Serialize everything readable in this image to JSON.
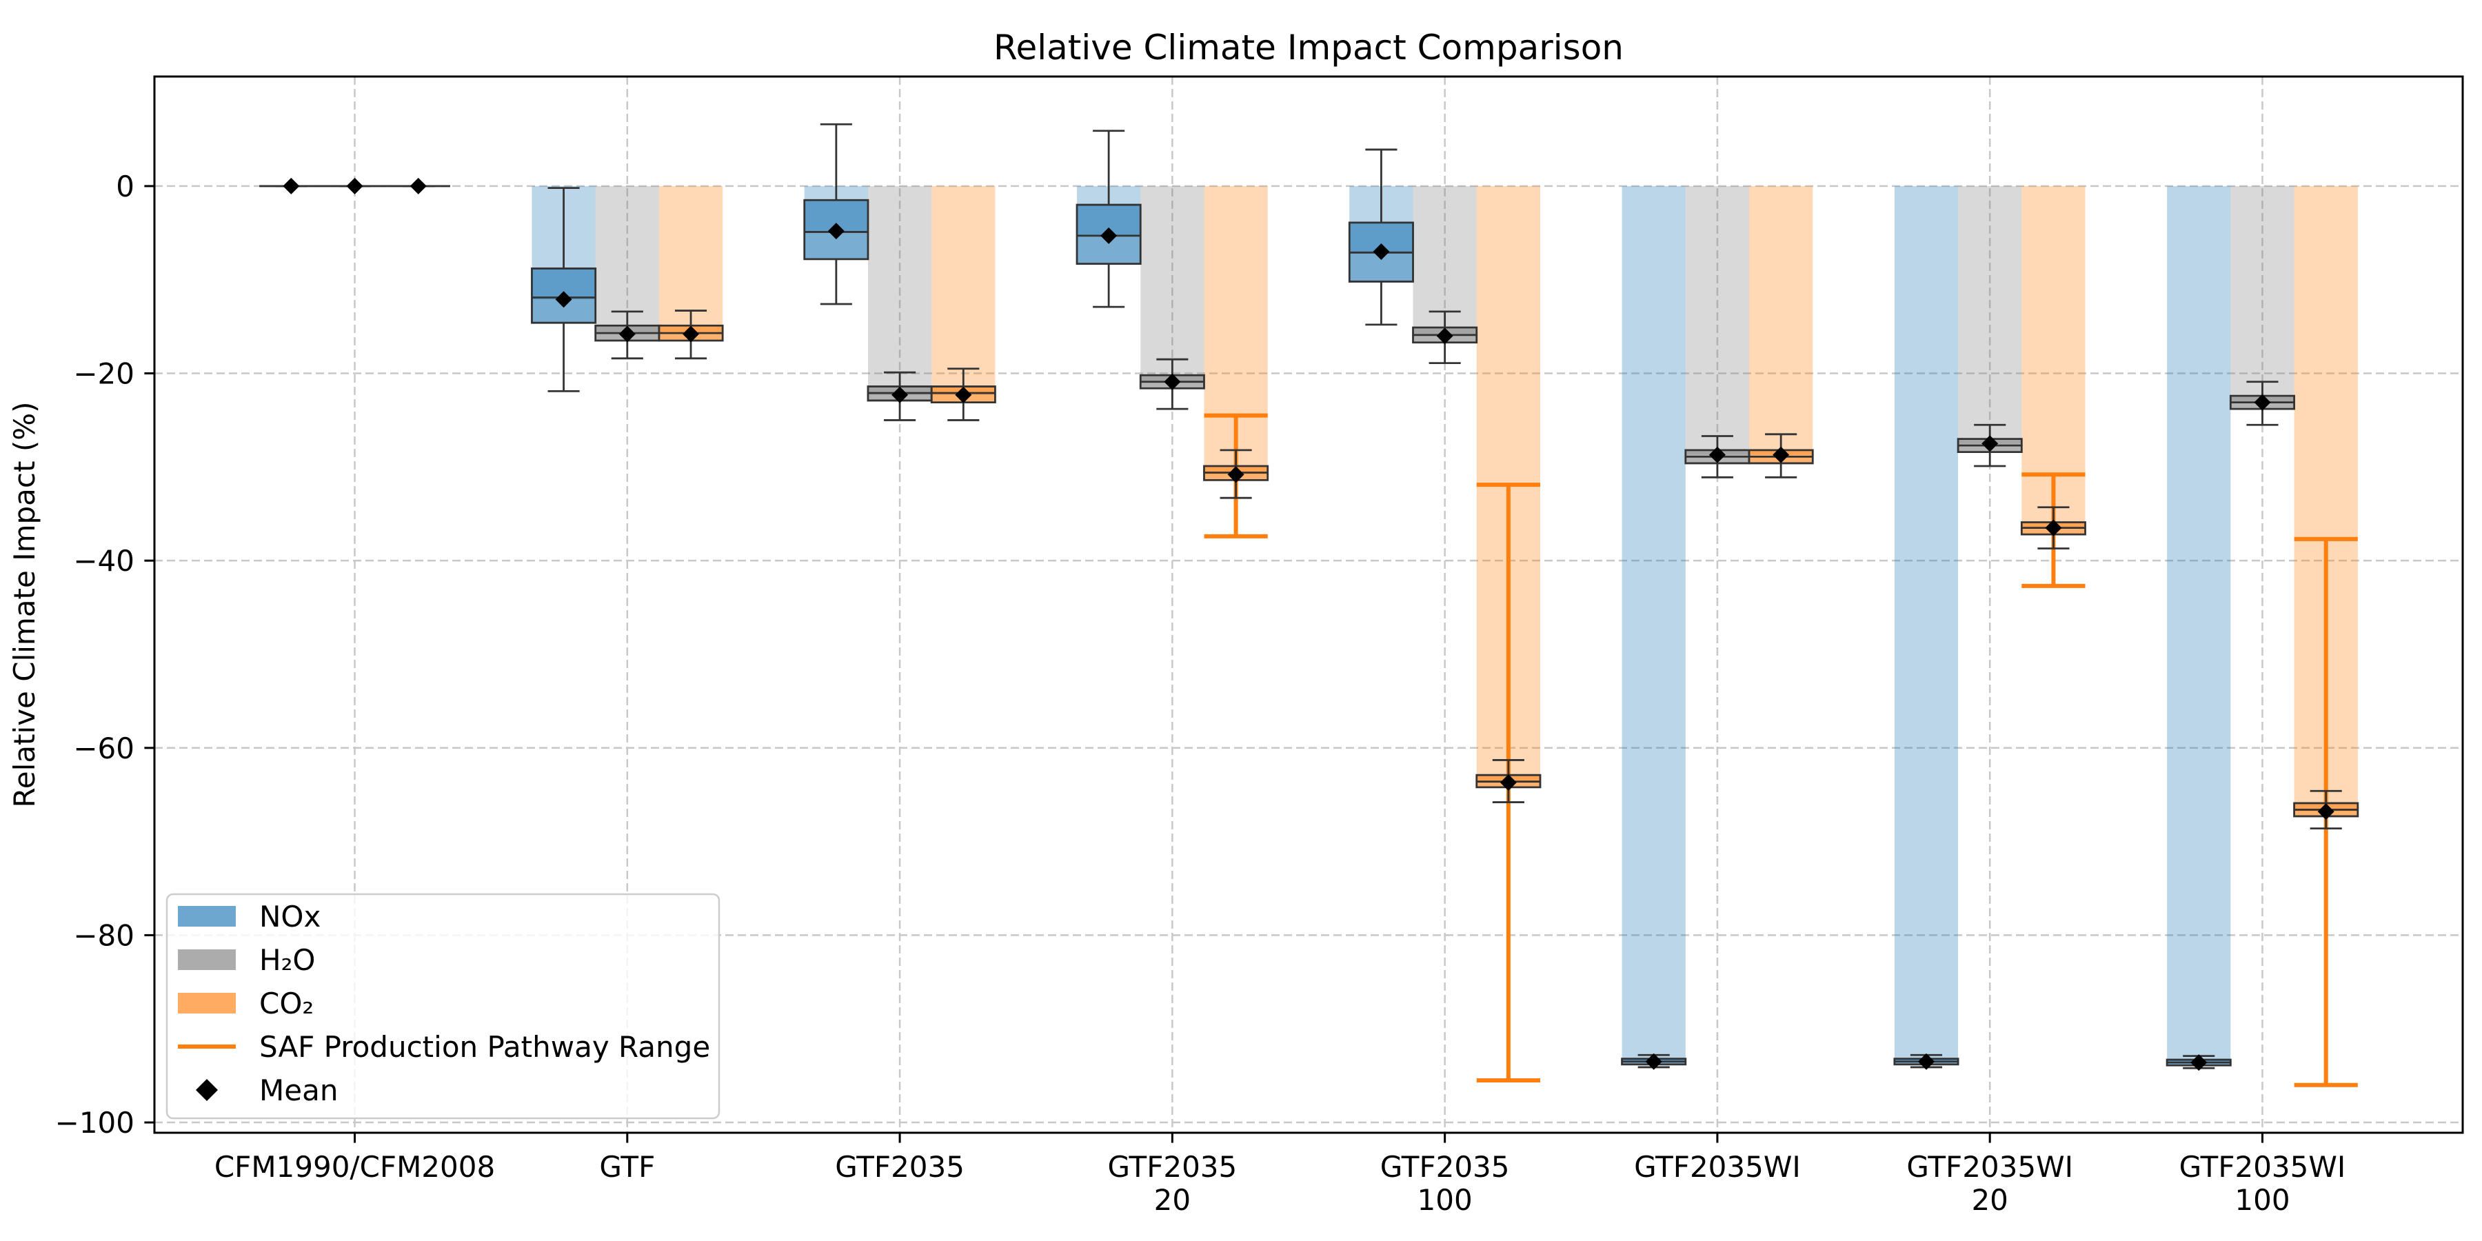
{
  "chart_data": {
    "type": "bar",
    "title": "Relative Climate Impact Comparison",
    "xlabel": "",
    "ylabel": "Relative Climate Impact (%)",
    "categories": [
      [
        "CFM1990/CFM2008"
      ],
      [
        "GTF"
      ],
      [
        "GTF2035"
      ],
      [
        "GTF2035",
        "20"
      ],
      [
        "GTF2035",
        "100"
      ],
      [
        "GTF2035WI"
      ],
      [
        "GTF2035WI",
        "20"
      ],
      [
        "GTF2035WI",
        "100"
      ]
    ],
    "ylim": [
      -101.1,
      11.7
    ],
    "yticks": [
      0,
      -20,
      -40,
      -60,
      -80,
      -100
    ],
    "ytick_labels": [
      "0",
      "−20",
      "−40",
      "−60",
      "−80",
      "−100"
    ],
    "grid": true,
    "legend_position": "lower-left",
    "series": [
      {
        "name": "NOx",
        "color": "#1f77b4",
        "mean": [
          0,
          -12.1,
          -4.8,
          -5.3,
          -7.0,
          -93.5,
          -93.5,
          -93.6
        ],
        "whishi": [
          0,
          -0.2,
          6.6,
          5.9,
          3.9,
          -92.8,
          -92.8,
          -92.9
        ],
        "q3": [
          0,
          -8.8,
          -1.5,
          -2.0,
          -3.9,
          -93.2,
          -93.2,
          -93.3
        ],
        "median": [
          0,
          -11.9,
          -4.9,
          -5.3,
          -7.1,
          -93.5,
          -93.5,
          -93.6
        ],
        "q1": [
          0,
          -14.6,
          -7.8,
          -8.3,
          -10.2,
          -93.8,
          -93.8,
          -93.9
        ],
        "whislo": [
          0,
          -21.9,
          -12.6,
          -12.9,
          -14.8,
          -94.1,
          -94.1,
          -94.2
        ]
      },
      {
        "name": "H₂O",
        "color": "#808080",
        "mean": [
          0,
          -15.8,
          -22.3,
          -20.9,
          -16.0,
          -28.7,
          -27.5,
          -23.1
        ],
        "whishi": [
          0,
          -13.4,
          -19.9,
          -18.5,
          -13.4,
          -26.7,
          -25.5,
          -20.9
        ],
        "q3": [
          0,
          -14.9,
          -21.4,
          -20.2,
          -15.1,
          -28.2,
          -27.0,
          -22.4
        ],
        "median": [
          0,
          -15.7,
          -22.1,
          -20.9,
          -15.9,
          -28.9,
          -27.7,
          -23.1
        ],
        "q1": [
          0,
          -16.5,
          -22.9,
          -21.6,
          -16.7,
          -29.6,
          -28.4,
          -23.8
        ],
        "whislo": [
          0,
          -18.4,
          -25.0,
          -23.8,
          -18.9,
          -31.1,
          -29.9,
          -25.5
        ]
      },
      {
        "name": "CO₂",
        "color": "#ff7f0e",
        "mean": [
          0,
          -15.8,
          -22.3,
          -30.8,
          -63.7,
          -28.7,
          -36.5,
          -66.8
        ],
        "whishi": [
          0,
          -13.3,
          -19.5,
          -28.2,
          -61.3,
          -26.5,
          -34.3,
          -64.6
        ],
        "q3": [
          0,
          -14.9,
          -21.4,
          -29.9,
          -62.9,
          -28.2,
          -35.9,
          -65.9
        ],
        "median": [
          0,
          -15.7,
          -22.1,
          -30.6,
          -63.6,
          -28.9,
          -36.5,
          -66.6
        ],
        "q1": [
          0,
          -16.5,
          -23.1,
          -31.4,
          -64.2,
          -29.6,
          -37.2,
          -67.3
        ],
        "whislo": [
          0,
          -18.4,
          -25.0,
          -33.3,
          -65.8,
          -31.1,
          -38.7,
          -68.6
        ],
        "saf_range": [
          null,
          null,
          null,
          [
            -24.5,
            -37.4
          ],
          [
            -31.9,
            -95.5
          ],
          null,
          [
            -30.8,
            -42.7
          ],
          [
            -37.7,
            -96.0
          ]
        ]
      }
    ],
    "saf_range_label": "SAF Production Pathway Range",
    "saf_range_color": "#ff7f0e",
    "mean_label": "Mean",
    "mean_color": "#000000",
    "box_edge_color": "#333333"
  }
}
